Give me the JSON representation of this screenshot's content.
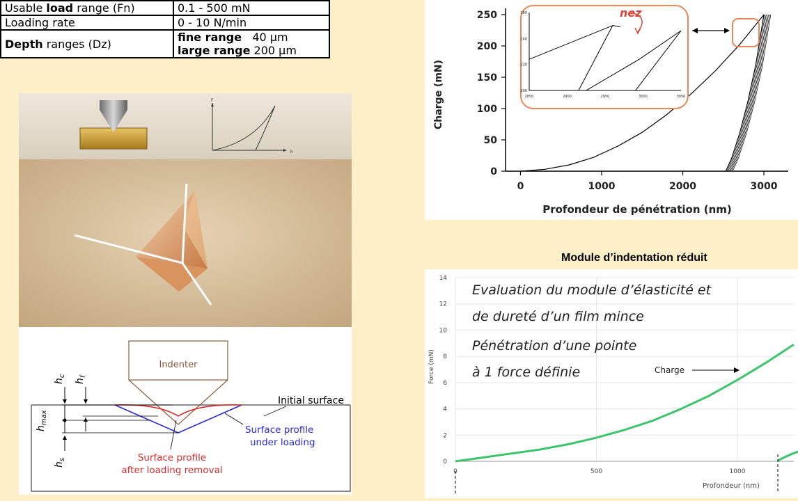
{
  "spec_table": {
    "rows": [
      {
        "label_bold": "load",
        "label_pre": "Usable ",
        "label_post": " range (Fn)",
        "value": "0.1 - 500 mN"
      },
      {
        "label_bold": "",
        "label_pre": "Loading rate",
        "label_post": "",
        "value": "0 - 10 N/min"
      },
      {
        "label_bold": "Depth",
        "label_pre": "",
        "label_post": " ranges (Dz)",
        "value_lines": [
          {
            "name": "fine range",
            "value": "40 µm"
          },
          {
            "name": "large range",
            "value": "200 µm"
          }
        ]
      }
    ]
  },
  "indenter_photo": {
    "mini_chart": {
      "y_label": "F",
      "x_label": "h"
    }
  },
  "schematic": {
    "indenter_label": "Indenter",
    "initial_surface": "Initial surface",
    "loaded_profile": [
      "Surface profile",
      "under loading"
    ],
    "unloaded_profile": [
      "Surface profile",
      "after loading removal"
    ],
    "h_labels": {
      "hc": "h",
      "hc_sub": "c",
      "hf": "h",
      "hf_sub": "f",
      "hmax": "h",
      "hmax_sub": "max",
      "hs": "h",
      "hs_sub": "s"
    },
    "colors": {
      "loaded": "#2b2bd6",
      "unloaded": "#d62b2b"
    }
  },
  "chart_data": [
    {
      "type": "line",
      "title": "",
      "xlabel": "Profondeur de pénétration (nm)",
      "ylabel": "Charge (mN)",
      "xlim": [
        -150,
        3300
      ],
      "ylim": [
        0,
        260
      ],
      "xticks": [
        0,
        1000,
        2000,
        3000
      ],
      "yticks": [
        0,
        50,
        100,
        150,
        200,
        250
      ],
      "x_tick_labels": [
        "0",
        "1000",
        "2000",
        "3000"
      ],
      "y_tick_labels": [
        "0",
        "50",
        "100",
        "150",
        "200",
        "250"
      ],
      "series": [
        {
          "values_x": [
            0,
            300,
            600,
            900,
            1200,
            1500,
            1800,
            2100,
            2400,
            2700,
            3000
          ],
          "values_y": [
            0,
            3,
            10,
            22,
            40,
            62,
            90,
            123,
            160,
            202,
            250
          ]
        },
        {
          "values_x": [
            2530,
            2600,
            2700,
            2800,
            2900,
            3000
          ],
          "values_y": [
            0,
            20,
            60,
            110,
            170,
            250
          ]
        }
      ],
      "inset": {
        "annotation": "nez",
        "xlim": [
          2850,
          3050
        ],
        "ylim": [
          200,
          260
        ],
        "x_tick_labels": [
          "2850",
          "2900",
          "2950",
          "3000",
          "3050"
        ],
        "y_tick_labels": [
          "200",
          "220",
          "240",
          "260"
        ]
      },
      "color": "#000000",
      "inset_frame_color": "#e8875a"
    },
    {
      "type": "line",
      "title": "Module d’indentation réduit",
      "xlabel": "Profondeur (nm)",
      "ylabel": "Force (mN)",
      "xlim": [
        0,
        1200
      ],
      "ylim": [
        0,
        14
      ],
      "xticks": [
        0,
        500,
        1000
      ],
      "yticks": [
        0,
        2,
        4,
        6,
        8,
        10,
        12,
        14
      ],
      "x_tick_labels": [
        "0",
        "500",
        "1000"
      ],
      "y_tick_labels": [
        "0",
        "2",
        "4",
        "6",
        "8",
        "10",
        "12",
        "14"
      ],
      "series": [
        {
          "name": "Charge",
          "x": [
            0,
            100,
            200,
            300,
            400,
            500,
            600,
            700,
            800,
            900,
            1000,
            1100,
            1200
          ],
          "values": [
            0,
            0.3,
            0.6,
            0.9,
            1.3,
            1.8,
            2.4,
            3.1,
            4.0,
            5.0,
            6.2,
            7.5,
            8.9
          ]
        }
      ],
      "annotations": {
        "line1": "Evaluation du module d’élasticité et",
        "line2": "de dureté d’un film mince",
        "line3": "Pénétration d’une pointe",
        "line4": "à 1 force définie",
        "series_label": "Charge"
      },
      "color": "#3cc46b"
    }
  ]
}
